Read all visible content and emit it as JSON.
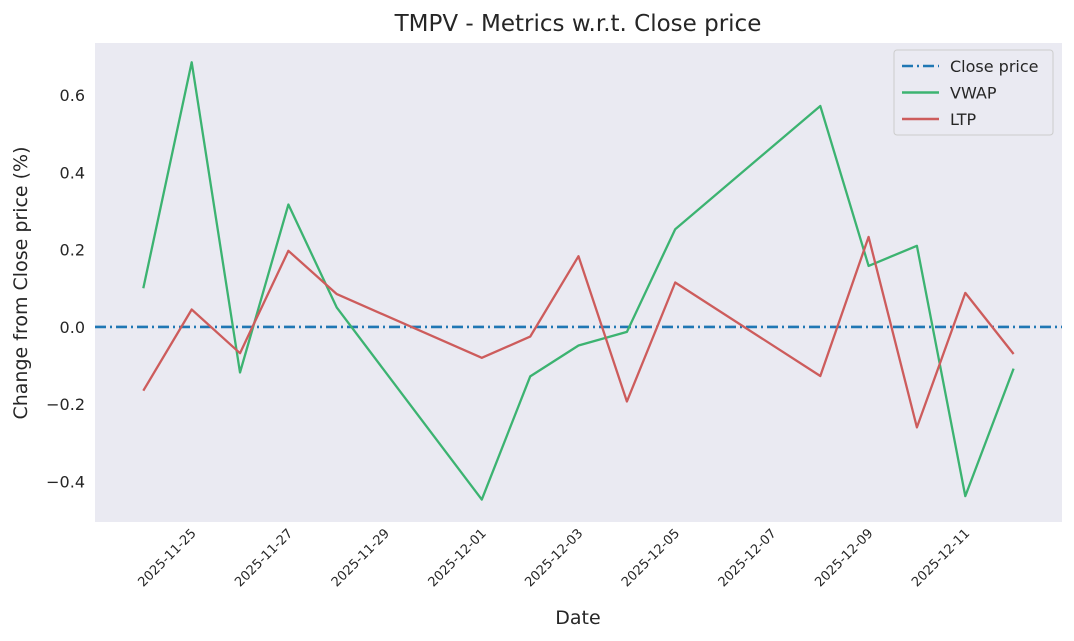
{
  "chart_data": {
    "type": "line",
    "title": "TMPV - Metrics w.r.t. Close price",
    "xlabel": "Date",
    "ylabel": "Change from Close price (%)",
    "ylim": [
      -0.505,
      0.735
    ],
    "xlim": [
      "2025-11-23",
      "2025-12-13"
    ],
    "grid": false,
    "legend_position": "top-right",
    "x_ticks": [
      "2025-11-25",
      "2025-11-27",
      "2025-11-29",
      "2025-12-01",
      "2025-12-03",
      "2025-12-05",
      "2025-12-07",
      "2025-12-09",
      "2025-12-11"
    ],
    "y_ticks": [
      {
        "value": 0.6,
        "label": "0.6"
      },
      {
        "value": 0.4,
        "label": "0.4"
      },
      {
        "value": 0.2,
        "label": "0.2"
      },
      {
        "value": 0.0,
        "label": "0.0"
      },
      {
        "value": -0.2,
        "label": "−0.2"
      },
      {
        "value": -0.4,
        "label": "−0.4"
      }
    ],
    "x": [
      "2025-11-24",
      "2025-11-25",
      "2025-11-26",
      "2025-11-27",
      "2025-11-28",
      "2025-12-01",
      "2025-12-02",
      "2025-12-03",
      "2025-12-04",
      "2025-12-05",
      "2025-12-08",
      "2025-12-09",
      "2025-12-10",
      "2025-12-11",
      "2025-12-12"
    ],
    "series": [
      {
        "name": "Close price",
        "style": "dashdot",
        "color": "#1f77b4",
        "values": [
          0,
          0,
          0,
          0,
          0,
          0,
          0,
          0,
          0,
          0,
          0,
          0,
          0,
          0,
          0
        ]
      },
      {
        "name": "VWAP",
        "style": "solid",
        "color": "#3cb371",
        "values": [
          0.1,
          0.685,
          -0.118,
          0.317,
          0.05,
          -0.447,
          -0.128,
          -0.048,
          -0.013,
          0.253,
          0.572,
          0.158,
          0.21,
          -0.438,
          -0.108
        ]
      },
      {
        "name": "LTP",
        "style": "solid",
        "color": "#cd5c5c",
        "values": [
          -0.165,
          0.045,
          -0.068,
          0.197,
          0.085,
          -0.08,
          -0.025,
          0.183,
          -0.193,
          0.115,
          -0.127,
          0.233,
          -0.26,
          0.088,
          -0.07
        ]
      }
    ]
  }
}
